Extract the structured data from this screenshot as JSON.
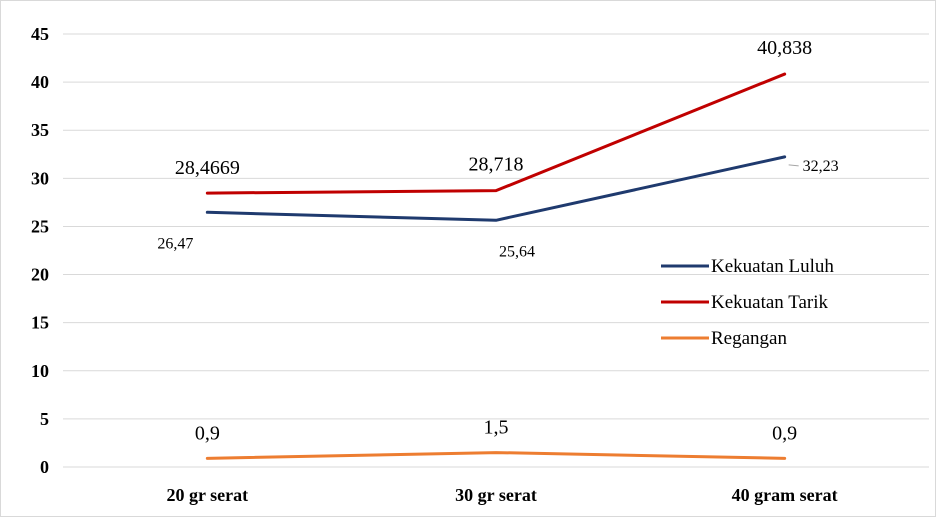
{
  "chart_data": {
    "type": "line",
    "title": "",
    "xlabel": "",
    "ylabel": "",
    "categories": [
      "20 gr serat",
      "30 gr serat",
      "40 gram serat"
    ],
    "ylim": [
      0,
      45
    ],
    "yticks": [
      "0",
      "5",
      "10",
      "15",
      "20",
      "25",
      "30",
      "35",
      "40",
      "45"
    ],
    "grid": true,
    "legend_position": "right",
    "series": [
      {
        "name": "Kekuatan Luluh",
        "color": "#1f3a6e",
        "values": [
          26.47,
          25.64,
          32.23
        ],
        "labels": [
          "26,47",
          "25,64",
          "32,23"
        ]
      },
      {
        "name": "Kekuatan Tarik",
        "color": "#c00000",
        "values": [
          28.4669,
          28.718,
          40.838
        ],
        "labels": [
          "28,4669",
          "28,718",
          "40,838"
        ]
      },
      {
        "name": "Regangan",
        "color": "#ed7d31",
        "values": [
          0.9,
          1.5,
          0.9
        ],
        "labels": [
          "0,9",
          "1,5",
          "0,9"
        ]
      }
    ]
  }
}
